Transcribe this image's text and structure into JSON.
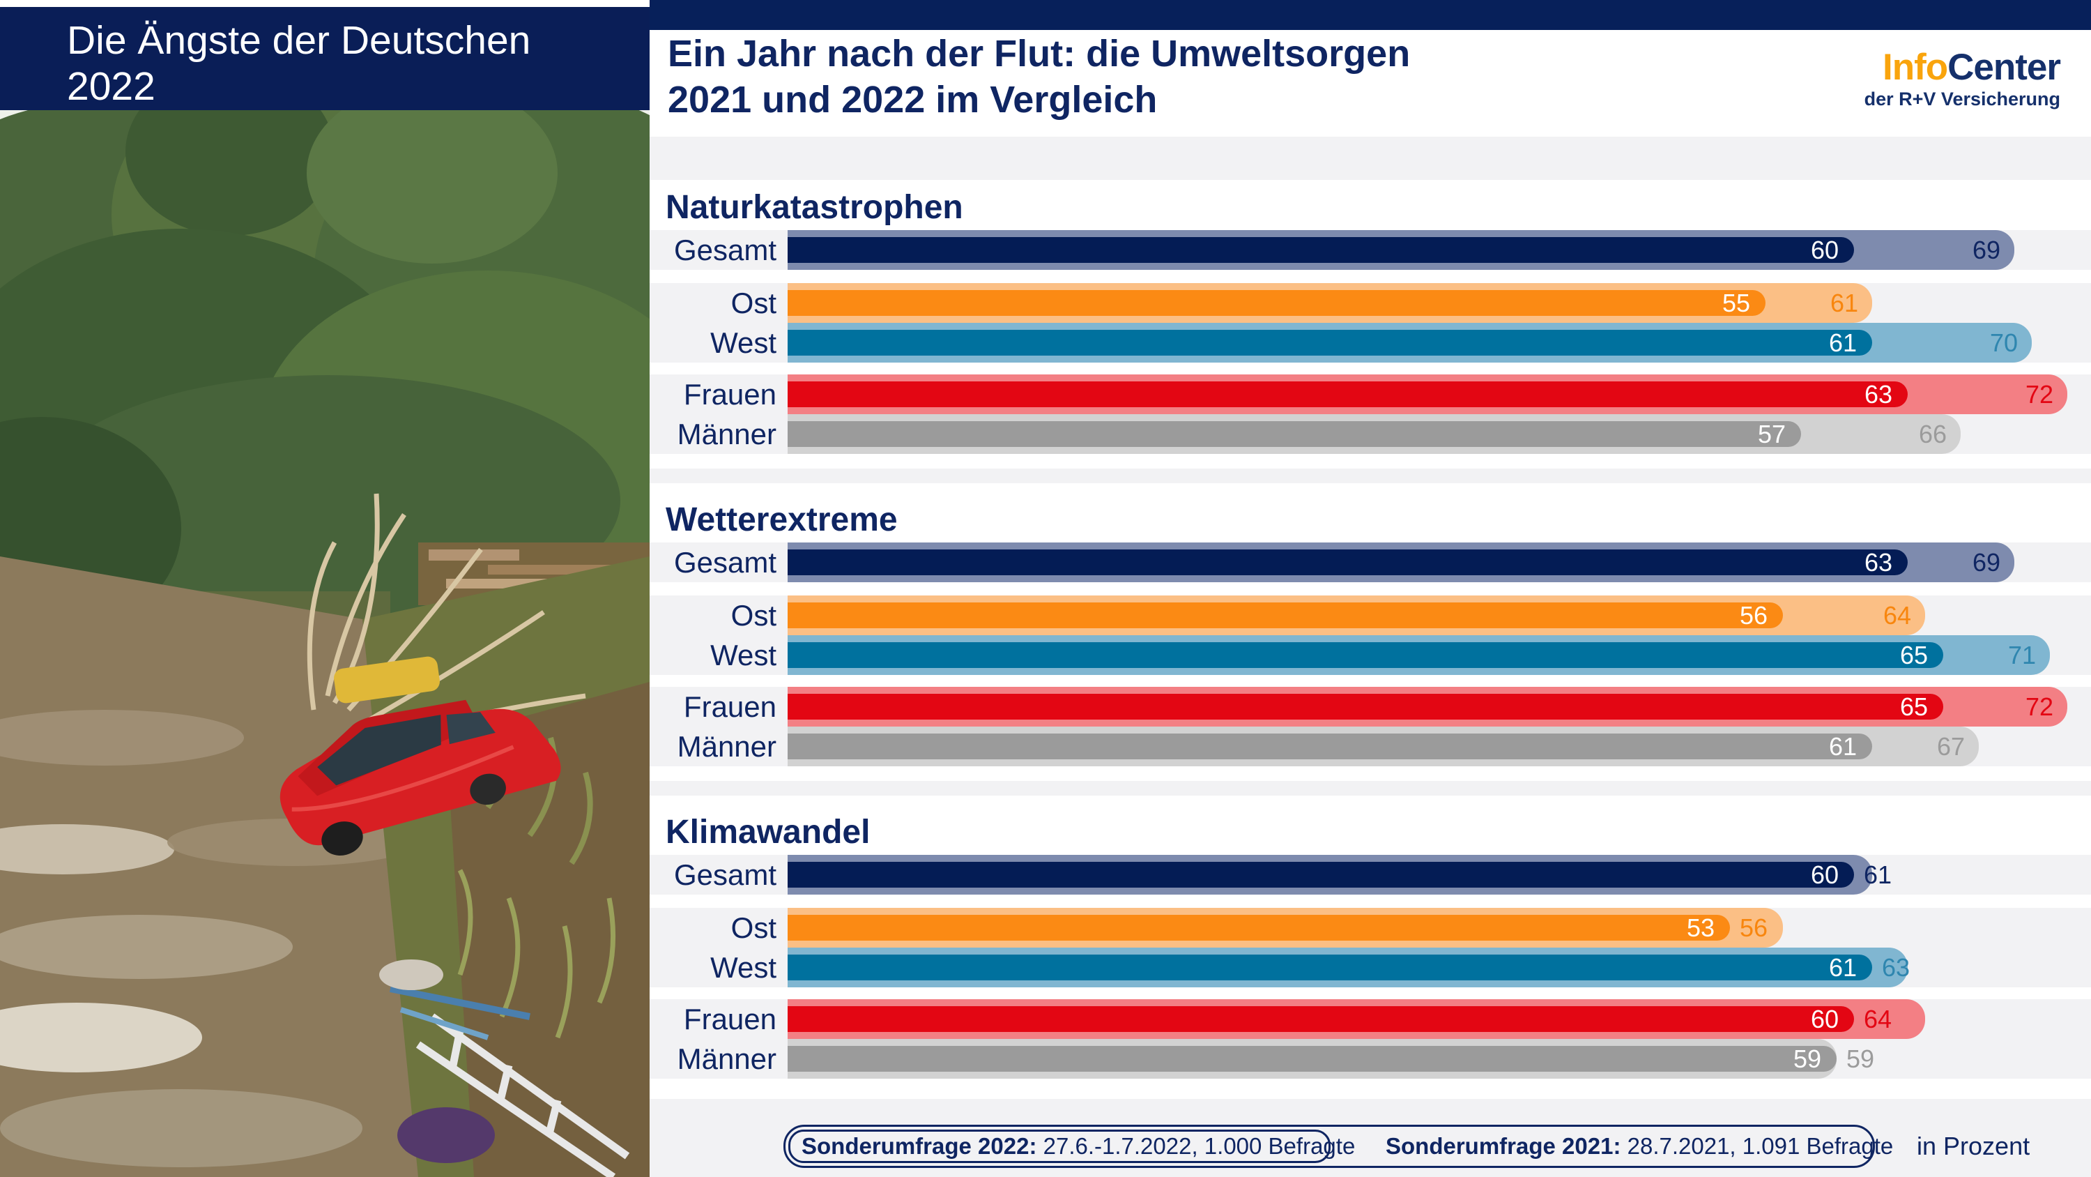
{
  "banner": {
    "line1": "Die Ängste der Deutschen",
    "line2": "2022"
  },
  "header": {
    "title_line1": "Ein Jahr nach der Flut: die Umweltsorgen",
    "title_line2": "2021 und 2022 im Vergleich"
  },
  "logo": {
    "part1": "Info",
    "part2": "Center",
    "subtitle": "der R+V Versicherung"
  },
  "footer": {
    "survey2022_label": "Sonderumfrage 2022:",
    "survey2022_detail": " 27.6.-1.7.2022, 1.000 Befragte",
    "survey2021_label": "Sonderumfrage 2021:",
    "survey2021_detail": " 28.7.2021, 1.091 Befragte",
    "unit_note": "in Prozent"
  },
  "chart_data": {
    "type": "bar",
    "unit": "percent",
    "series_years": [
      "2022",
      "2021"
    ],
    "xlim": [
      0,
      72
    ],
    "legend_position": "none",
    "grid": false,
    "sections": [
      {
        "title": "Naturkatastrophen",
        "rows": [
          {
            "key": "gesamt",
            "label": "Gesamt",
            "values": {
              "y2022": 60,
              "y2021": 69
            }
          },
          {
            "key": "ost",
            "label": "Ost",
            "values": {
              "y2022": 55,
              "y2021": 61
            }
          },
          {
            "key": "west",
            "label": "West",
            "values": {
              "y2022": 61,
              "y2021": 70
            }
          },
          {
            "key": "frauen",
            "label": "Frauen",
            "values": {
              "y2022": 63,
              "y2021": 72
            }
          },
          {
            "key": "maenner",
            "label": "Männer",
            "values": {
              "y2022": 57,
              "y2021": 66
            }
          }
        ]
      },
      {
        "title": "Wetterextreme",
        "rows": [
          {
            "key": "gesamt",
            "label": "Gesamt",
            "values": {
              "y2022": 63,
              "y2021": 69
            }
          },
          {
            "key": "ost",
            "label": "Ost",
            "values": {
              "y2022": 56,
              "y2021": 64
            }
          },
          {
            "key": "west",
            "label": "West",
            "values": {
              "y2022": 65,
              "y2021": 71
            }
          },
          {
            "key": "frauen",
            "label": "Frauen",
            "values": {
              "y2022": 65,
              "y2021": 72
            }
          },
          {
            "key": "maenner",
            "label": "Männer",
            "values": {
              "y2022": 61,
              "y2021": 67
            }
          }
        ]
      },
      {
        "title": "Klimawandel",
        "rows": [
          {
            "key": "gesamt",
            "label": "Gesamt",
            "values": {
              "y2022": 60,
              "y2021": 61
            }
          },
          {
            "key": "ost",
            "label": "Ost",
            "values": {
              "y2022": 53,
              "y2021": 56
            }
          },
          {
            "key": "west",
            "label": "West",
            "values": {
              "y2022": 61,
              "y2021": 63
            }
          },
          {
            "key": "frauen",
            "label": "Frauen",
            "values": {
              "y2022": 60,
              "y2021": 64
            }
          },
          {
            "key": "maenner",
            "label": "Männer",
            "values": {
              "y2022": 59,
              "y2021": 59
            }
          }
        ]
      }
    ],
    "colors": {
      "gesamt": {
        "y2022": "#041C55",
        "y2021": "#7E8BAE",
        "label2021": "#0F2562"
      },
      "ost": {
        "y2022": "#FB8A14",
        "y2021": "#FBBF85",
        "label2021": "#F8860E"
      },
      "west": {
        "y2022": "#00719E",
        "y2021": "#80B6D1",
        "label2021": "#2F86AF"
      },
      "frauen": {
        "y2022": "#E30613",
        "y2021": "#F37F84",
        "label2021": "#E30613"
      },
      "maenner": {
        "y2022": "#9B9B9B",
        "y2021": "#D2D2D2",
        "label2021": "#9B9B9B"
      }
    }
  }
}
